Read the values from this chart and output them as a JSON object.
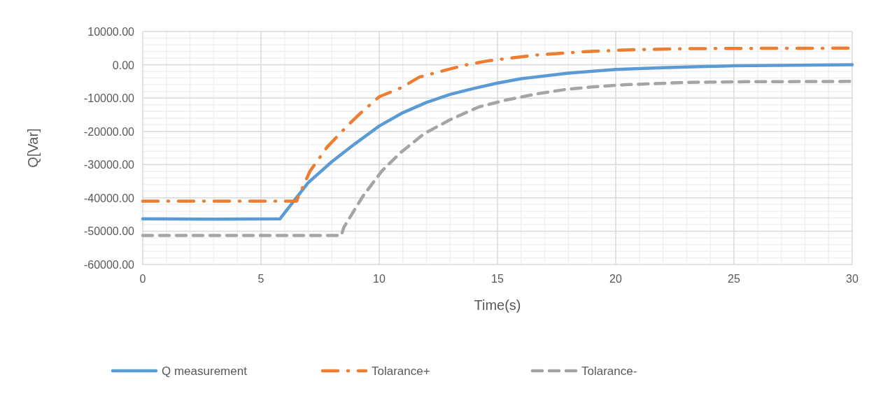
{
  "chart_data": {
    "type": "line",
    "xlabel": "Time(s)",
    "ylabel": "Q[Var]",
    "xlim": [
      0,
      30
    ],
    "xticks": [
      0,
      5,
      10,
      15,
      20,
      25,
      30
    ],
    "ylim": [
      -60000,
      10000
    ],
    "yticks": [
      {
        "value": -60000,
        "label": "-60000.00"
      },
      {
        "value": -50000,
        "label": "-50000.00"
      },
      {
        "value": -40000,
        "label": "-40000.00"
      },
      {
        "value": -30000,
        "label": "-30000.00"
      },
      {
        "value": -20000,
        "label": "-20000.00"
      },
      {
        "value": -10000,
        "label": "-10000.00"
      },
      {
        "value": 0,
        "label": "0.00"
      },
      {
        "value": 10000,
        "label": "10000.00"
      }
    ],
    "grid": true,
    "legend": "bottom",
    "marker": "none",
    "series": [
      {
        "name": "Q measurement",
        "color": "#5b9bd5",
        "line_style": "solid",
        "x": [
          0,
          3,
          5.8,
          7,
          8,
          9,
          10,
          11,
          12,
          13,
          14,
          15,
          16,
          18,
          20,
          22,
          25,
          30
        ],
        "values": [
          -46300,
          -46400,
          -46300,
          -35400,
          -29100,
          -23600,
          -18400,
          -14400,
          -11300,
          -8900,
          -7100,
          -5500,
          -4200,
          -2500,
          -1400,
          -900,
          -300,
          0
        ]
      },
      {
        "name": "Tolarance+",
        "color": "#ed7d31",
        "line_style": "dashdot",
        "x": [
          0,
          6.5,
          7.07,
          7.8,
          8.7,
          9.2,
          10,
          10.9,
          11.7,
          12.7,
          13.7,
          14.6,
          16.6,
          18.6,
          20.6,
          22.5,
          24.5,
          30
        ],
        "values": [
          -41000,
          -41000,
          -32000,
          -24700,
          -18000,
          -14600,
          -9600,
          -7000,
          -3700,
          -1800,
          0,
          1200,
          2900,
          3900,
          4500,
          4800,
          4900,
          5000
        ]
      },
      {
        "name": "Tolarance-",
        "color": "#a5a5a5",
        "line_style": "dashed",
        "x": [
          0,
          8.4,
          8.5,
          9.3,
          10.1,
          10.9,
          11.9,
          13,
          14.2,
          15.3,
          16.7,
          17.9,
          19.1,
          20.4,
          23,
          25.5,
          30
        ],
        "values": [
          -51300,
          -51300,
          -48900,
          -39600,
          -32000,
          -26400,
          -20700,
          -16500,
          -12700,
          -10700,
          -8700,
          -7400,
          -6600,
          -6000,
          -5300,
          -5100,
          -5000
        ]
      }
    ]
  }
}
